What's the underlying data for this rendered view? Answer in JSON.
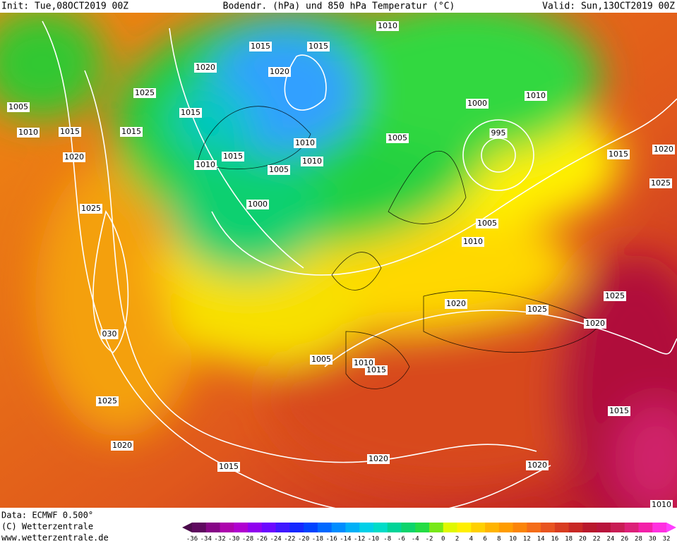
{
  "header": {
    "init": "Init: Tue,08OCT2019 00Z",
    "title": "Bodendr. (hPa) und 850 hPa Temperatur (°C)",
    "valid": "Valid: Sun,13OCT2019 00Z"
  },
  "footer": {
    "data": "Data: ECMWF   0.500°",
    "copyright": "(C) Wetterzentrale",
    "url": "www.wetterzentrale.de"
  },
  "colorbar": {
    "labels": [
      -36,
      -34,
      -32,
      -30,
      -28,
      -26,
      -24,
      -22,
      -20,
      -18,
      -16,
      -14,
      -12,
      -10,
      -8,
      -6,
      -4,
      -2,
      0,
      2,
      4,
      6,
      8,
      10,
      12,
      14,
      16,
      18,
      20,
      22,
      24,
      26,
      28,
      30,
      32
    ]
  },
  "isobar_labels": [
    "1010",
    "1015",
    "1015",
    "1020",
    "1020",
    "1025",
    "1005",
    "1010",
    "1000",
    "1015",
    "1010",
    "1015",
    "1015",
    "995",
    "1005",
    "1010",
    "1020",
    "1015",
    "1010",
    "1010",
    "1005",
    "1015",
    "1020",
    "1025",
    "1000",
    "1025",
    "1005",
    "1010",
    "1020",
    "1025",
    "1025",
    "1020",
    "030",
    "1005",
    "1010",
    "1015",
    "1025",
    "1015",
    "1020",
    "1015",
    "1020",
    "1020",
    "1010"
  ]
}
